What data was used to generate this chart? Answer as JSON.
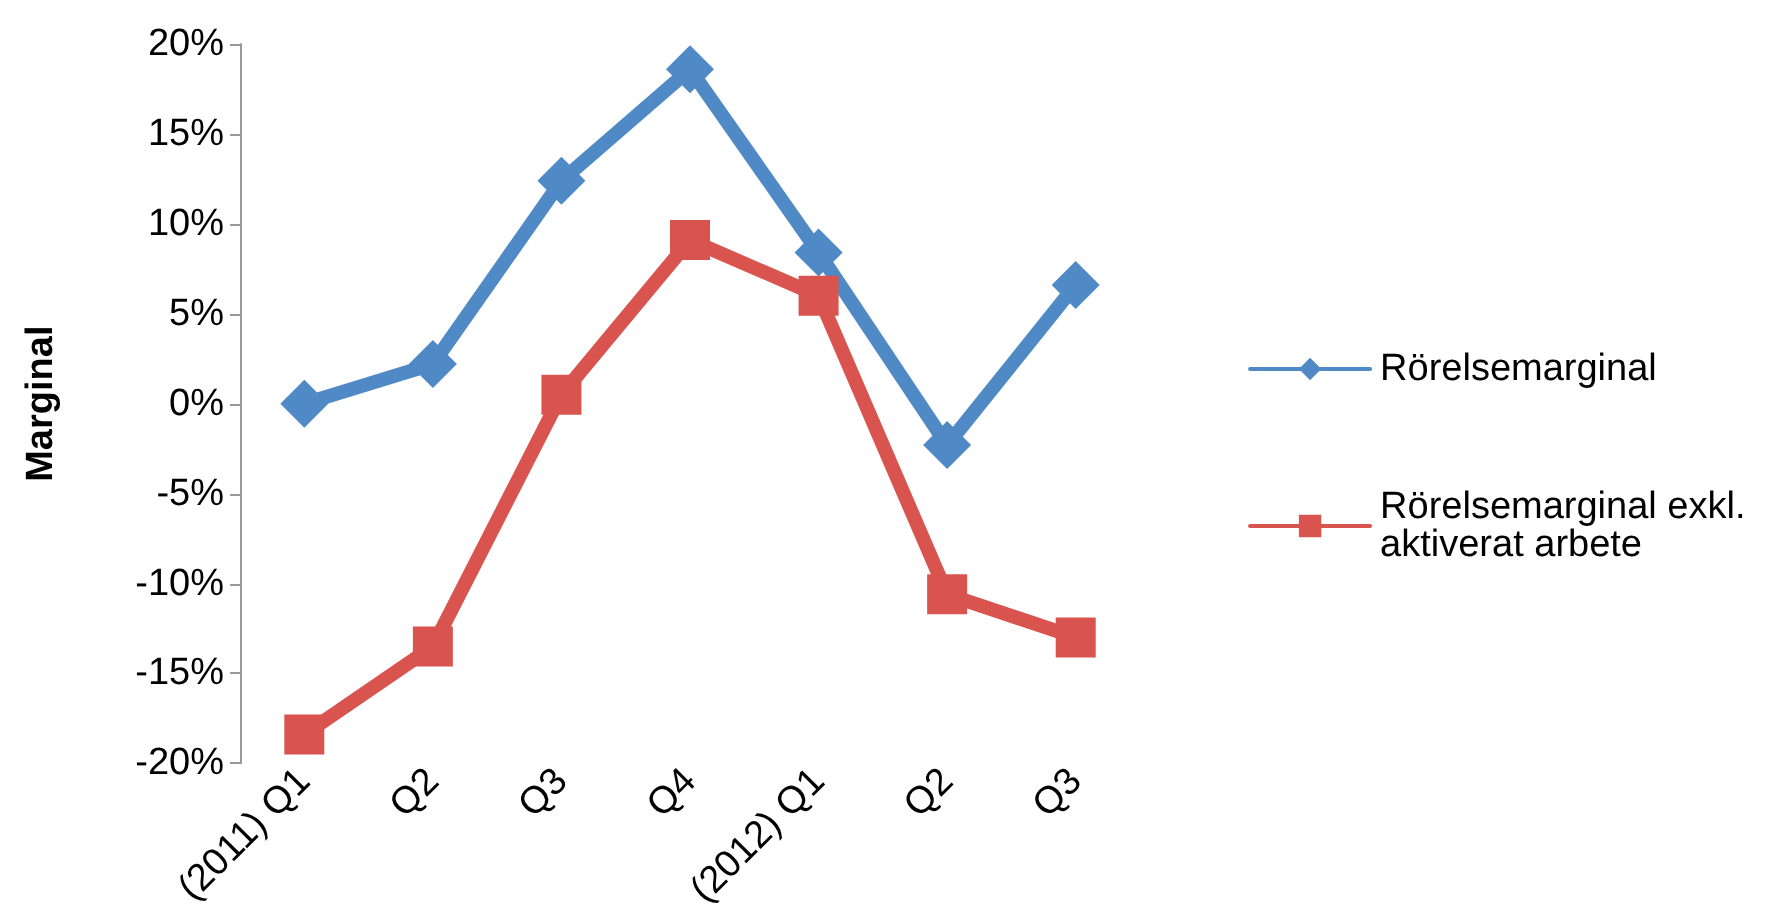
{
  "chart_data": {
    "type": "line",
    "ylabel": "Marginal",
    "categories": [
      "(2011) Q1",
      "Q2",
      "Q3",
      "Q4",
      "(2012) Q1",
      "Q2",
      "Q3"
    ],
    "series": [
      {
        "name": "Rörelsemarginal",
        "color": "#4f89c6",
        "marker": "diamond",
        "values": [
          0,
          2.2,
          12.4,
          18.6,
          8.4,
          -2.3,
          6.6
        ]
      },
      {
        "name": "Rörelsemarginal exkl. aktiverat arbete",
        "color": "#d9534f",
        "marker": "square",
        "values": [
          -18.4,
          -13.5,
          0.5,
          9.1,
          6.0,
          -10.6,
          -13.0
        ]
      }
    ],
    "ylim": [
      -20,
      20
    ],
    "yticks": [
      {
        "value": -20,
        "label": "-20%"
      },
      {
        "value": -15,
        "label": "-15%"
      },
      {
        "value": -10,
        "label": "-10%"
      },
      {
        "value": -5,
        "label": "-5%"
      },
      {
        "value": 0,
        "label": "0%"
      },
      {
        "value": 5,
        "label": "5%"
      },
      {
        "value": 10,
        "label": "10%"
      },
      {
        "value": 15,
        "label": "15%"
      },
      {
        "value": 20,
        "label": "20%"
      }
    ],
    "grid": false,
    "legend": "right",
    "line_style": "solid"
  }
}
